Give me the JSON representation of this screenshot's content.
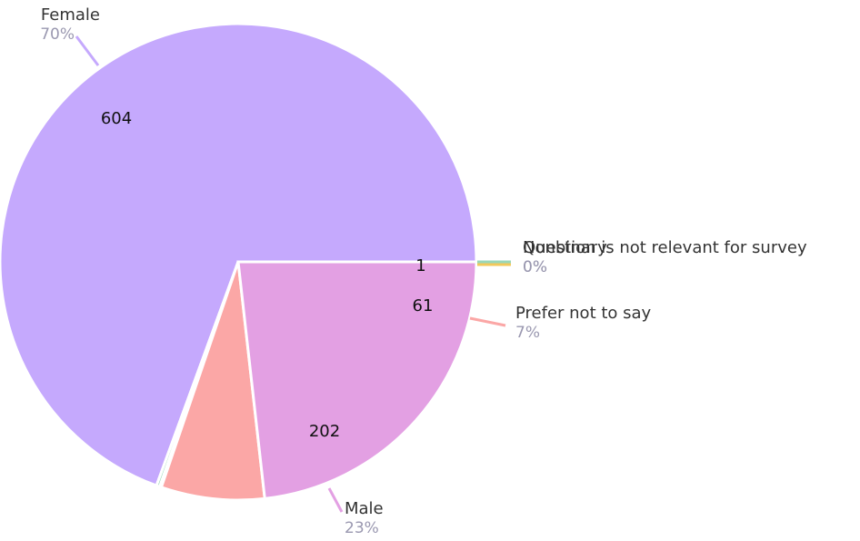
{
  "chart_data": {
    "type": "pie",
    "title": "",
    "slices": [
      {
        "label": "Female",
        "value": 604,
        "percent": "70%",
        "color": "#c5a9fd",
        "leader_color": "#c5a9fd"
      },
      {
        "label": "Nonbinary",
        "value": 2,
        "percent": "0%",
        "color": "#9ad7b8",
        "leader_color": "#9ad7b8"
      },
      {
        "label": "Question is not relevant for survey",
        "value": 1,
        "percent": "0%",
        "color": "#f2c85b",
        "leader_color": "#f2c85b"
      },
      {
        "label": "Prefer not to say",
        "value": 61,
        "percent": "7%",
        "color": "#fba7a6",
        "leader_color": "#fba7a6"
      },
      {
        "label": "Male",
        "value": 202,
        "percent": "23%",
        "color": "#e3a0e3",
        "leader_color": "#e3a0e3"
      }
    ],
    "value_labels_shown": [
      "604",
      "1",
      "61",
      "202"
    ],
    "start_angle": "east",
    "direction": "counterclockwise-from-east"
  }
}
